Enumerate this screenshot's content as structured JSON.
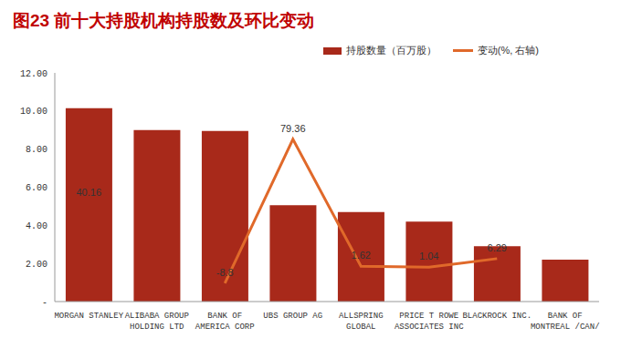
{
  "chart_data": {
    "type": "bar",
    "title": "图23 前十大持股机构持股数及环比变动",
    "categories": [
      "MORGAN STANLEY",
      "ALIBABA GROUP HOLDING LTD",
      "BANK OF AMERICA CORP",
      "UBS GROUP AG",
      "ALLSPRING GLOBAL",
      "PRICE T ROWE ASSOCIATES INC",
      "BLACKROCK INC.",
      "BANK OF MONTREAL /CAN/"
    ],
    "series": [
      {
        "name": "持股数量（百万股）",
        "type": "bar",
        "color": "#a8291a",
        "values": [
          10.15,
          9.0,
          8.95,
          5.05,
          4.7,
          4.2,
          2.9,
          2.2
        ]
      },
      {
        "name": "变动(%, 右轴)",
        "type": "line",
        "axis": "y2",
        "color": "#e0692a",
        "data_labels": true,
        "values": [
          40.16,
          null,
          -8.8,
          79.36,
          1.62,
          1.04,
          6.29,
          null
        ]
      }
    ],
    "ylim": [
      0,
      12
    ],
    "yticks": [
      {
        "value": 0,
        "label": "-"
      },
      {
        "value": 2,
        "label": "2.00"
      },
      {
        "value": 4,
        "label": "4.00"
      },
      {
        "value": 6,
        "label": "6.00"
      },
      {
        "value": 8,
        "label": "8.00"
      },
      {
        "value": 10,
        "label": "10.00"
      },
      {
        "value": 12,
        "label": "12.00"
      }
    ],
    "y2lim": [
      -20,
      120
    ],
    "grid": false,
    "legend": "top-right"
  }
}
